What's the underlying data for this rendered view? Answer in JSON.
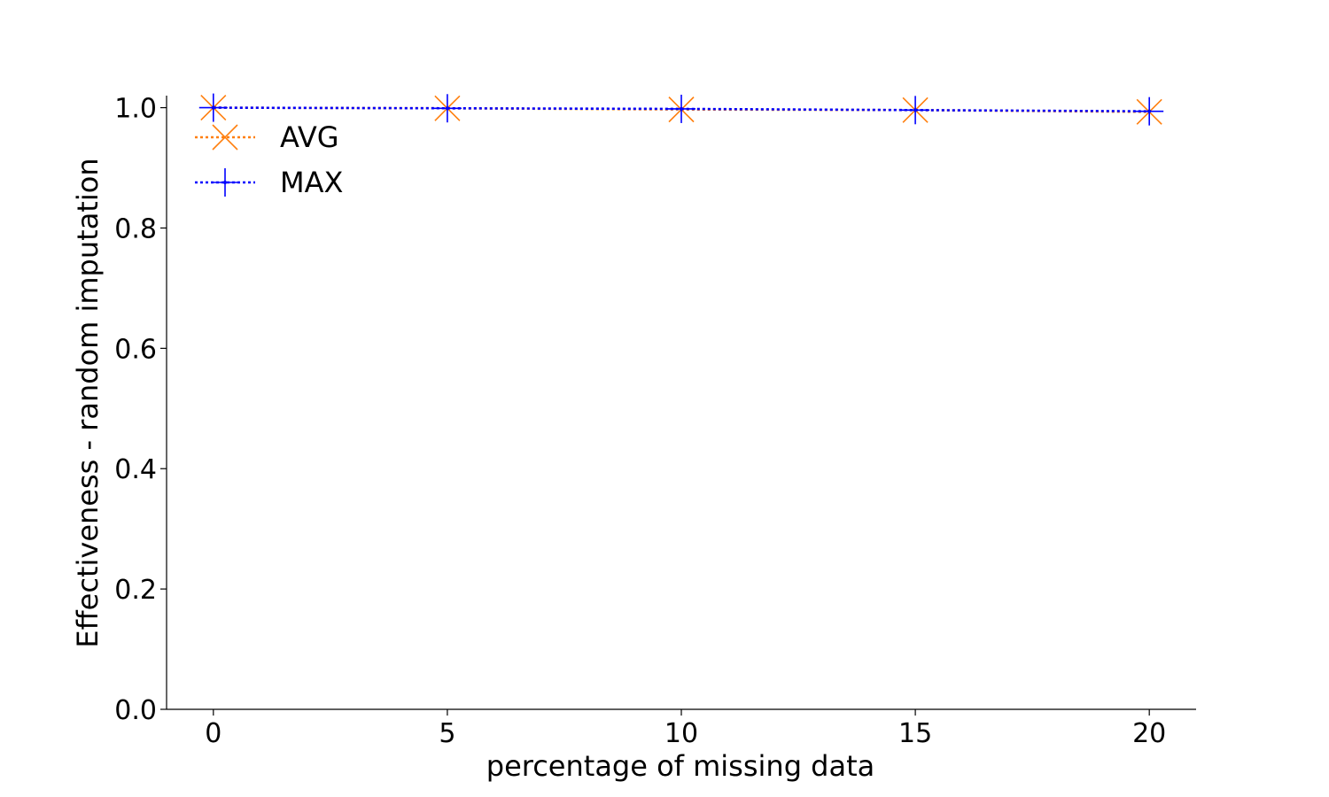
{
  "chart_data": {
    "type": "line",
    "title": "",
    "xlabel": "percentage of missing data",
    "ylabel": "Effectiveness - random imputation",
    "xlim": [
      -1,
      21
    ],
    "ylim": [
      0.0,
      1.02
    ],
    "xticks": [
      0,
      5,
      10,
      15,
      20
    ],
    "xtick_labels": [
      "0",
      "5",
      "10",
      "15",
      "20"
    ],
    "yticks": [
      0.0,
      0.2,
      0.4,
      0.6,
      0.8,
      1.0
    ],
    "ytick_labels": [
      "0.0",
      "0.2",
      "0.4",
      "0.6",
      "0.8",
      "1.0"
    ],
    "grid": false,
    "legend_placement": "upper-left",
    "x": [
      0,
      5,
      10,
      15,
      20
    ],
    "series": [
      {
        "name": "AVG",
        "values": [
          1.0,
          0.999,
          0.997,
          0.996,
          0.993
        ],
        "color": "#ff7f0e",
        "marker": "x",
        "linestyle": "dotted"
      },
      {
        "name": "MAX",
        "values": [
          1.0,
          0.999,
          0.998,
          0.996,
          0.994
        ],
        "color": "#0000ff",
        "marker": "+",
        "linestyle": "dotted"
      }
    ]
  }
}
